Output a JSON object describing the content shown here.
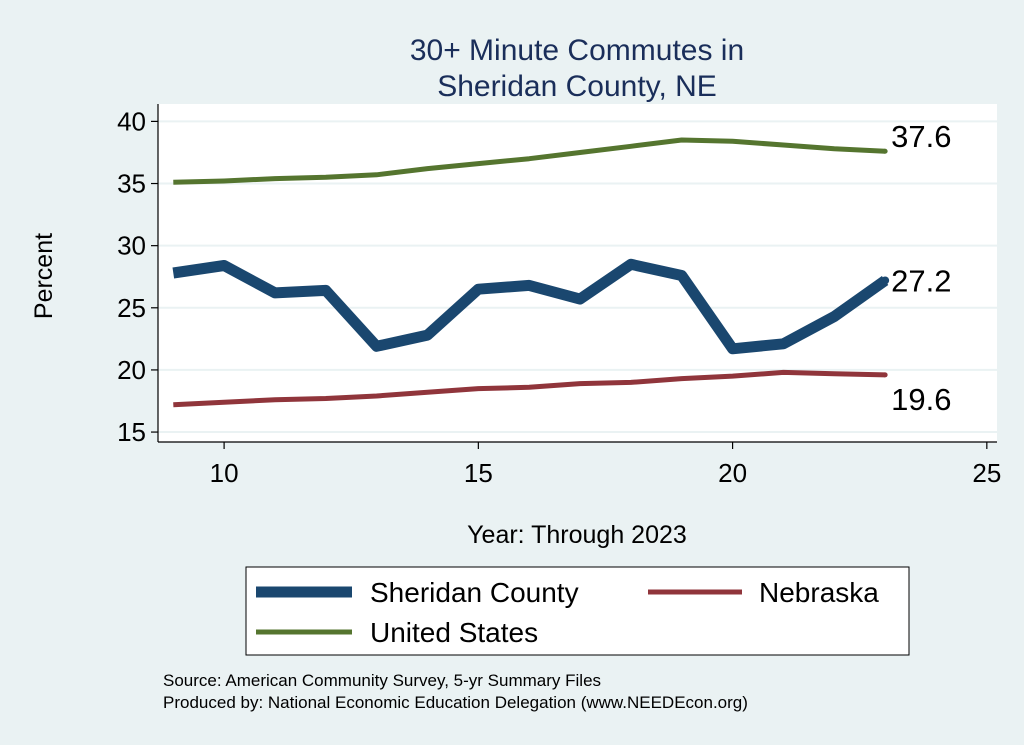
{
  "chart_data": {
    "type": "line",
    "title": [
      "30+ Minute Commutes in",
      "Sheridan County, NE"
    ],
    "xlabel": "Year: Through 2023",
    "ylabel": "Percent",
    "xlim": [
      8.7,
      25.2
    ],
    "ylim": [
      14.2,
      41.4
    ],
    "xticks": [
      10,
      15,
      20,
      25
    ],
    "yticks": [
      15,
      20,
      25,
      30,
      35,
      40
    ],
    "x": [
      9,
      10,
      11,
      12,
      13,
      14,
      15,
      16,
      17,
      18,
      19,
      20,
      21,
      22,
      23
    ],
    "series": [
      {
        "name": "Sheridan County",
        "color": "#1a476f",
        "width": 11,
        "values": [
          27.8,
          28.4,
          26.2,
          26.4,
          21.9,
          22.8,
          26.5,
          26.8,
          25.7,
          28.5,
          27.6,
          21.7,
          22.1,
          24.3,
          27.2
        ],
        "end_label": "27.2"
      },
      {
        "name": "Nebraska",
        "color": "#90353b",
        "width": 5,
        "values": [
          17.2,
          17.4,
          17.6,
          17.7,
          17.9,
          18.2,
          18.5,
          18.6,
          18.9,
          19.0,
          19.3,
          19.5,
          19.8,
          19.7,
          19.6
        ],
        "end_label": "19.6"
      },
      {
        "name": "United States",
        "color": "#55752f",
        "width": 5,
        "values": [
          35.1,
          35.2,
          35.4,
          35.5,
          35.7,
          36.2,
          36.6,
          37.0,
          37.5,
          38.0,
          38.5,
          38.4,
          38.1,
          37.8,
          37.6
        ],
        "end_label": "37.6"
      }
    ],
    "legend": [
      {
        "label": "Sheridan County",
        "series": 0
      },
      {
        "label": "Nebraska",
        "series": 1
      },
      {
        "label": "United States",
        "series": 2
      }
    ],
    "grid": true,
    "legend_position": "bottom",
    "source_lines": [
      "Source: American Community Survey, 5-yr Summary Files",
      "Produced by: National Economic Education Delegation (www.NEEDEcon.org)"
    ]
  }
}
